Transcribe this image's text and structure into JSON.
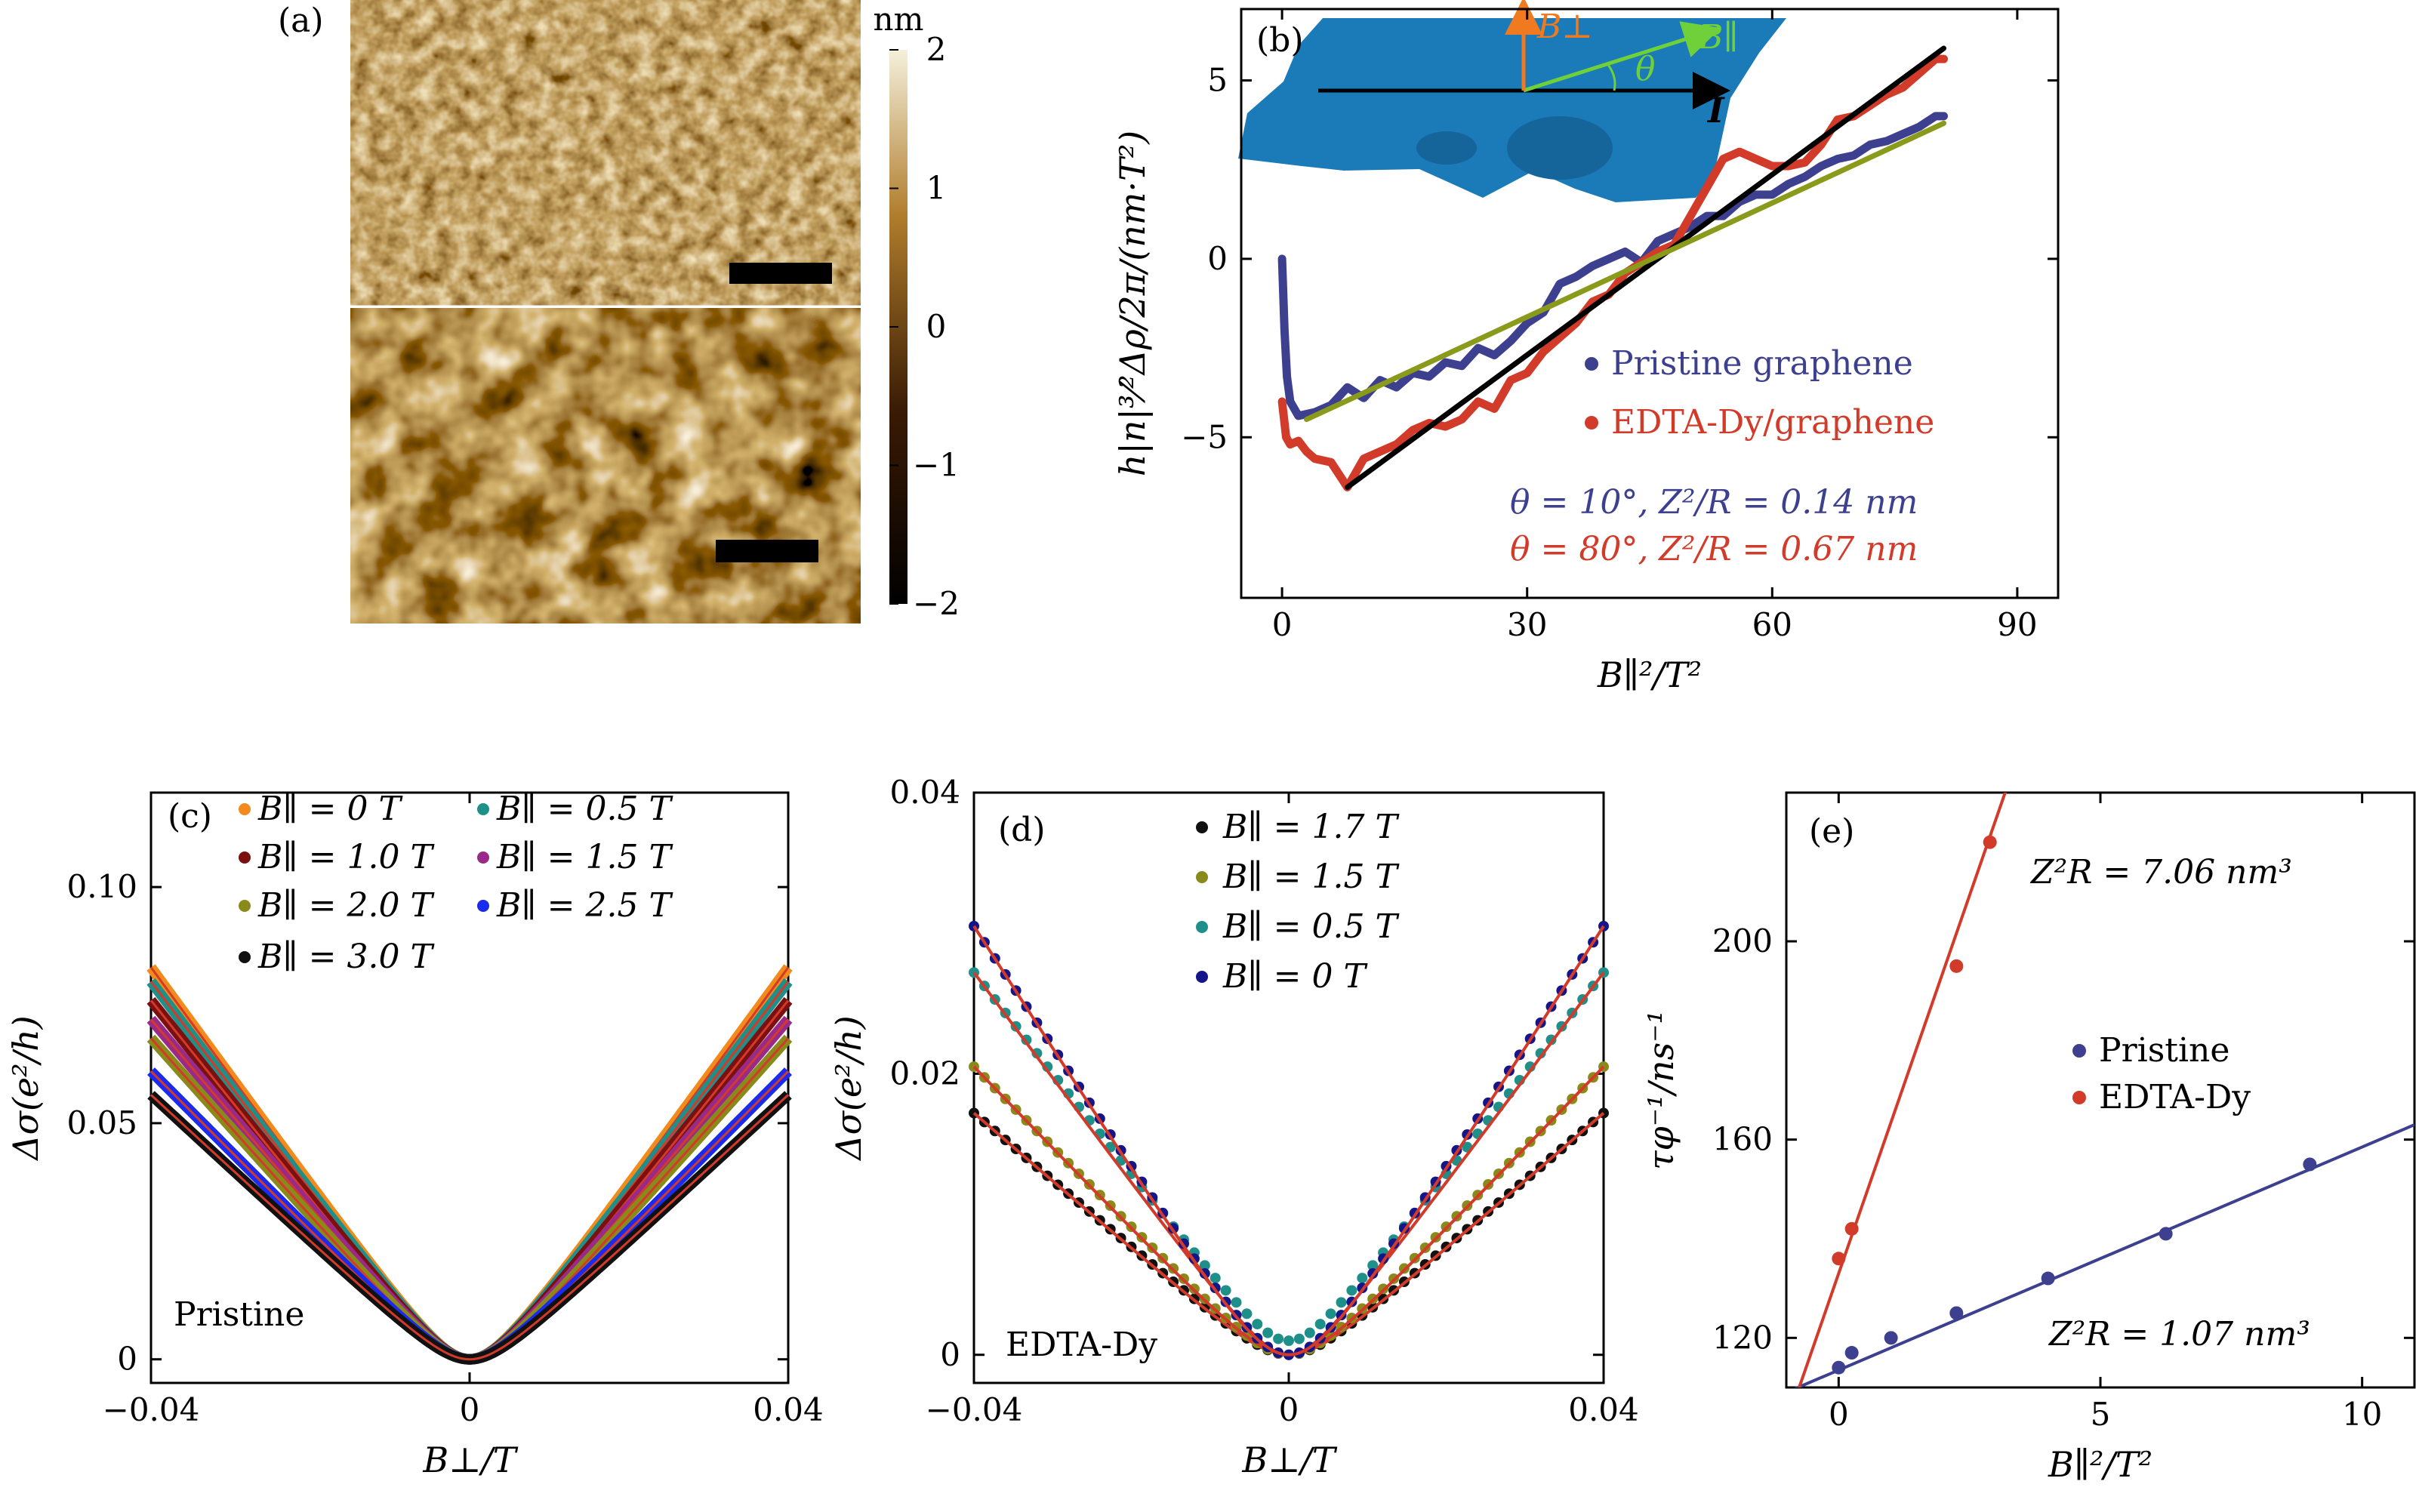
{
  "panel_a": {
    "letter": "(a)",
    "colorbar": {
      "unit": "nm",
      "ticks": [
        "2",
        "1",
        "0",
        "−1",
        "−2"
      ],
      "values": [
        2,
        1,
        0,
        -1,
        -2
      ],
      "colors": [
        "#f5f0dc",
        "#b07d2c",
        "#3a1b04",
        "#000000"
      ]
    }
  },
  "panel_b": {
    "letter": "(b)",
    "ylabel": "h|n|³⁄²Δρ/2π/(nm·T²)",
    "xlabel": "B∥²/T²",
    "xticks": [
      "0",
      "30",
      "60",
      "90"
    ],
    "yticks": [
      "5",
      "0",
      "−5"
    ],
    "inset": {
      "b_perp": "B⊥",
      "b_par": "B∥",
      "theta": "θ",
      "current": "I"
    },
    "legend": [
      "Pristine graphene",
      "EDTA-Dy/graphene"
    ],
    "annotations": [
      "θ = 10°,  Z²/R = 0.14 nm",
      "θ = 80°,  Z²/R = 0.67 nm"
    ],
    "colors": {
      "pristine": "#3d3f8f",
      "edta": "#d23a2a",
      "fit_black": "#000000",
      "fit_olive": "#8a9a1a",
      "inset": "#1b7ab8"
    }
  },
  "panel_c": {
    "letter": "(c)",
    "ylabel": "Δσ(e²/h)",
    "xlabel": "B⊥/T",
    "xticks": [
      "−0.04",
      "0",
      "0.04"
    ],
    "yticks": [
      "0.10",
      "0.05",
      "0"
    ],
    "sample_label": "Pristine",
    "legend": [
      {
        "label": "B∥ = 0 T",
        "color": "#f28a1c"
      },
      {
        "label": "B∥ = 0.5 T",
        "color": "#1f8f8a"
      },
      {
        "label": "B∥ = 1.0 T",
        "color": "#7a1010"
      },
      {
        "label": "B∥ = 1.5 T",
        "color": "#9a2a8a"
      },
      {
        "label": "B∥ = 2.0 T",
        "color": "#8a8a1a"
      },
      {
        "label": "B∥ = 2.5 T",
        "color": "#1a2aee"
      },
      {
        "label": "B∥ = 3.0 T",
        "color": "#111111"
      }
    ]
  },
  "panel_d": {
    "letter": "(d)",
    "ylabel": "Δσ(e²/h)",
    "xlabel": "B⊥/T",
    "xticks": [
      "−0.04",
      "0",
      "0.04"
    ],
    "yticks": [
      "0.04",
      "0.02",
      "0"
    ],
    "sample_label": "EDTA-Dy",
    "legend": [
      {
        "label": "B∥ = 1.7 T",
        "color": "#111111"
      },
      {
        "label": "B∥ = 1.5 T",
        "color": "#8a8a1a"
      },
      {
        "label": "B∥ = 0.5 T",
        "color": "#1f8f8a"
      },
      {
        "label": "B∥ = 0 T",
        "color": "#15158a"
      }
    ],
    "fit_color": "#d23a2a"
  },
  "panel_e": {
    "letter": "(e)",
    "ylabel": "τφ⁻¹/ns⁻¹",
    "xlabel": "B∥²/T²",
    "xticks": [
      "0",
      "5",
      "10"
    ],
    "yticks": [
      "200",
      "160",
      "120"
    ],
    "legend": [
      {
        "label": "Pristine",
        "color": "#3d3f8f"
      },
      {
        "label": "EDTA-Dy",
        "color": "#d23a2a"
      }
    ],
    "annotations": [
      "Z²R = 7.06 nm³",
      "Z²R = 1.07 nm³"
    ]
  },
  "chart_data": [
    {
      "panel": "b",
      "type": "line",
      "xlim": [
        -5,
        95
      ],
      "ylim": [
        -9.5,
        7
      ],
      "series": [
        {
          "name": "Pristine graphene",
          "x": [
            0,
            0.3,
            0.6,
            1,
            2,
            4,
            6,
            8,
            10,
            12,
            14,
            16,
            18,
            20,
            22,
            24,
            26,
            28,
            30,
            32,
            34,
            36,
            38,
            40,
            42,
            44,
            46,
            48,
            50,
            52,
            54,
            56,
            58,
            60,
            62,
            64,
            66,
            68,
            70,
            72,
            74,
            76,
            78,
            80,
            81
          ],
          "y": [
            0,
            -2,
            -3.3,
            -4,
            -4.4,
            -4.3,
            -4.1,
            -3.6,
            -3.9,
            -3.4,
            -3.6,
            -3.2,
            -3.3,
            -2.9,
            -3.0,
            -2.5,
            -2.7,
            -2.3,
            -1.8,
            -1.5,
            -0.7,
            -0.5,
            -0.2,
            0.0,
            0.2,
            -0.1,
            0.5,
            0.7,
            0.9,
            1.2,
            1.2,
            1.6,
            1.8,
            1.8,
            2.1,
            2.3,
            2.6,
            2.8,
            2.9,
            3.2,
            3.3,
            3.5,
            3.7,
            4.0,
            4.0
          ]
        },
        {
          "name": "EDTA-Dy/graphene",
          "x": [
            0,
            0.5,
            1,
            2,
            3,
            4,
            6,
            8,
            10,
            12,
            14,
            16,
            18,
            20,
            22,
            24,
            26,
            28,
            30,
            32,
            34,
            36,
            38,
            40,
            42,
            44,
            46,
            48,
            50,
            52,
            54,
            56,
            58,
            60,
            62,
            64,
            66,
            68,
            70,
            72,
            74,
            76,
            78,
            80,
            81
          ],
          "y": [
            -4,
            -5,
            -5.2,
            -5.1,
            -5.4,
            -5.6,
            -5.7,
            -6.4,
            -5.6,
            -5.4,
            -5.2,
            -4.8,
            -4.6,
            -4.7,
            -4.5,
            -4.0,
            -4.2,
            -3.4,
            -3.2,
            -2.6,
            -2.2,
            -1.8,
            -1.2,
            -1.0,
            -0.4,
            -0.1,
            0.2,
            0.4,
            1.2,
            2.0,
            2.8,
            3.0,
            2.8,
            2.6,
            2.6,
            2.7,
            3.2,
            3.9,
            4.0,
            4.3,
            4.6,
            4.8,
            5.2,
            5.6,
            5.6
          ]
        },
        {
          "name": "",
          "x": [
            8,
            81
          ],
          "y": [
            -6.4,
            5.9
          ]
        },
        {
          "name": "",
          "x": [
            3,
            81
          ],
          "y": [
            -4.5,
            3.8
          ]
        }
      ]
    },
    {
      "panel": "c",
      "type": "line",
      "xlim": [
        -0.04,
        0.04
      ],
      "ylim": [
        -0.005,
        0.12
      ],
      "B0": 0.0045,
      "series": [
        {
          "name": "B∥ = 0 T",
          "amplitude": 0.083
        },
        {
          "name": "B∥ = 0.5 T",
          "amplitude": 0.08
        },
        {
          "name": "B∥ = 1.0 T",
          "amplitude": 0.076
        },
        {
          "name": "B∥ = 1.5 T",
          "amplitude": 0.072
        },
        {
          "name": "B∥ = 2.0 T",
          "amplitude": 0.068
        },
        {
          "name": "B∥ = 2.5 T",
          "amplitude": 0.061
        },
        {
          "name": "B∥ = 3.0 T",
          "amplitude": 0.056
        }
      ]
    },
    {
      "panel": "d",
      "type": "scatter",
      "xlim": [
        -0.04,
        0.04
      ],
      "ylim": [
        -0.002,
        0.04
      ],
      "series": [
        {
          "name": "B∥ = 1.7 T",
          "amplitude": 0.0172,
          "B0": 0.0046,
          "offset": 0
        },
        {
          "name": "B∥ = 1.5 T",
          "amplitude": 0.0205,
          "B0": 0.0048,
          "offset": 0
        },
        {
          "name": "B∥ = 0.5 T",
          "amplitude": 0.0272,
          "B0": 0.0038,
          "offset": 0.001
        },
        {
          "name": "B∥ = 0 T",
          "amplitude": 0.0305,
          "B0": 0.0052,
          "offset": 0
        }
      ]
    },
    {
      "panel": "e",
      "type": "scatter",
      "xlim": [
        -1,
        11
      ],
      "ylim": [
        110,
        230
      ],
      "series": [
        {
          "name": "Pristine",
          "x": [
            0,
            0.25,
            1,
            2.25,
            4,
            6.25,
            9
          ],
          "y": [
            114,
            117,
            120,
            125,
            132,
            141,
            155
          ]
        },
        {
          "name": "EDTA-Dy",
          "x": [
            0,
            0.25,
            2.25,
            2.89
          ],
          "y": [
            136,
            142,
            195,
            220
          ]
        }
      ],
      "fits": [
        {
          "name": "Pristine",
          "slope": 4.5,
          "intercept": 113.5
        },
        {
          "name": "EDTA-Dy",
          "slope": 30.5,
          "intercept": 133
        }
      ]
    }
  ]
}
